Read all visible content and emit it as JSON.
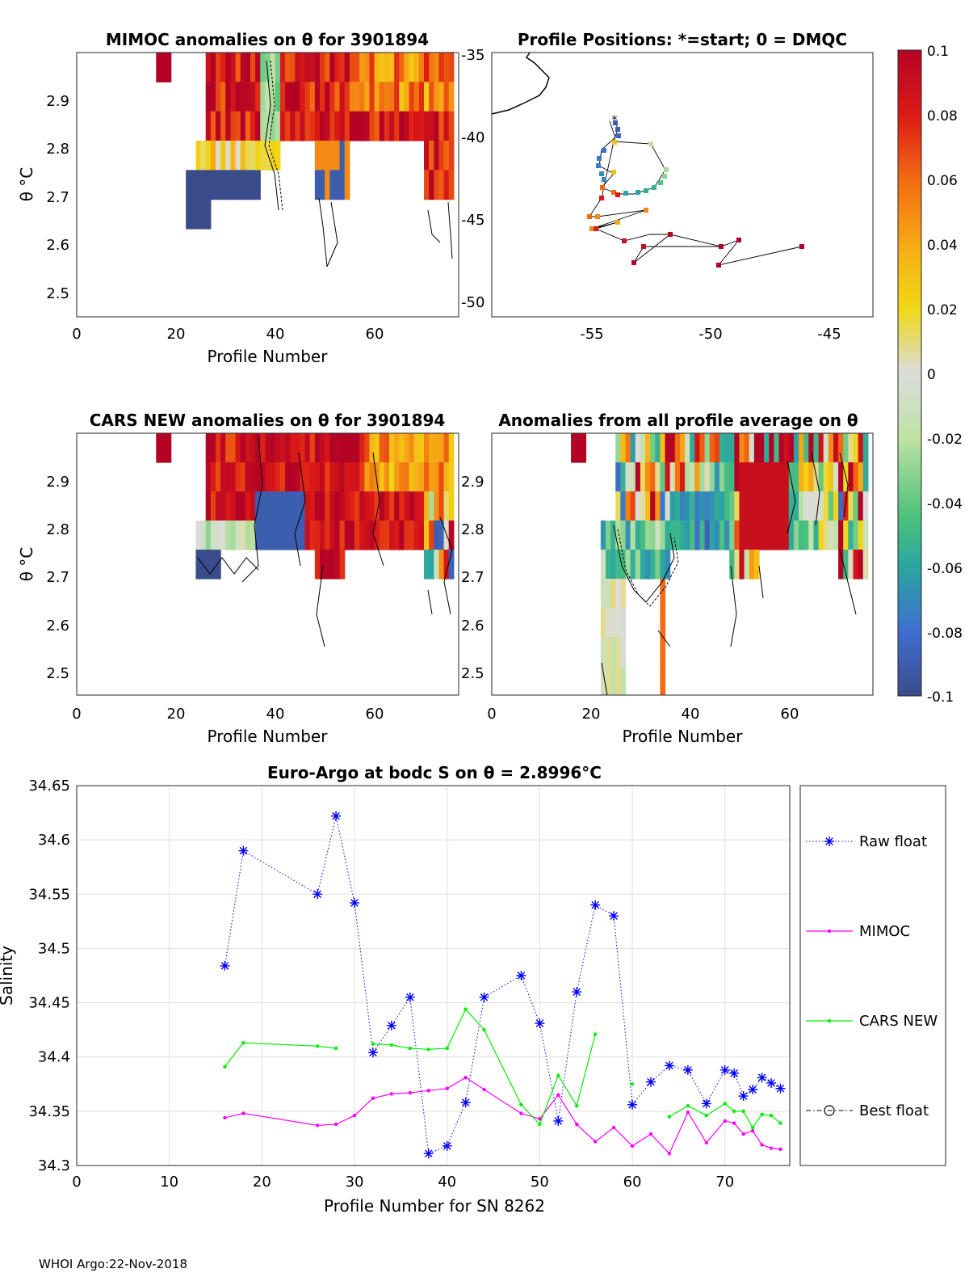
{
  "panel_mimoc": {
    "title": "MIMOC anomalies on θ  for 3901894",
    "xlabel": "Profile Number",
    "ylabel": "θ °C",
    "xticks": [
      "0",
      "20",
      "40",
      "60"
    ],
    "yticks": [
      "2.9",
      "2.8",
      "2.7",
      "2.6",
      "2.5"
    ]
  },
  "panel_positions": {
    "title": "Profile Positions: *=start; 0 = DMQC",
    "xticks": [
      "-55",
      "-50",
      "-45"
    ],
    "yticks": [
      "-35",
      "-40",
      "-45",
      "-50"
    ]
  },
  "colorbar": {
    "ticks": [
      "0.1",
      "0.08",
      "0.06",
      "0.04",
      "0.02",
      "0",
      "-0.02",
      "-0.04",
      "-0.06",
      "-0.08",
      "-0.1"
    ],
    "range": [
      -0.1,
      0.1
    ]
  },
  "panel_cars": {
    "title": "CARS NEW anomalies on θ for 3901894",
    "xlabel": "Profile Number",
    "ylabel": "θ °C",
    "xticks": [
      "0",
      "20",
      "40",
      "60"
    ],
    "yticks": [
      "2.9",
      "2.8",
      "2.7",
      "2.6",
      "2.5"
    ]
  },
  "panel_avg": {
    "title": "Anomalies from all profile average on θ",
    "xlabel": "Profile Number",
    "xticks": [
      "0",
      "20",
      "40",
      "60"
    ],
    "yticks": [
      "2.9",
      "2.8",
      "2.7",
      "2.6",
      "2.5"
    ]
  },
  "chart_data": {
    "type": "line",
    "title": "Euro-Argo at bodc S on θ = 2.8996°C",
    "xlabel": "Profile Number for SN 8262",
    "ylabel": "Salinity",
    "xlim": [
      0,
      77
    ],
    "ylim": [
      34.3,
      34.65
    ],
    "xticks": [
      "0",
      "10",
      "20",
      "30",
      "40",
      "50",
      "60",
      "70"
    ],
    "yticks": [
      "34.3",
      "34.35",
      "34.4",
      "34.45",
      "34.5",
      "34.55",
      "34.6",
      "34.65"
    ],
    "grid": true,
    "legend_position": "right",
    "series": [
      {
        "name": "Raw float",
        "color": "#0000ff",
        "style": "dotted-star",
        "points": [
          [
            16,
            34.484
          ],
          [
            18,
            34.59
          ],
          [
            26,
            34.55
          ],
          [
            28,
            34.622
          ],
          [
            30,
            34.542
          ],
          [
            32,
            34.404
          ],
          [
            34,
            34.429
          ],
          [
            36,
            34.455
          ],
          [
            38,
            34.311
          ],
          [
            40,
            34.318
          ],
          [
            42,
            34.358
          ],
          [
            44,
            34.455
          ],
          [
            48,
            34.475
          ],
          [
            50,
            34.431
          ],
          [
            52,
            34.341
          ],
          [
            54,
            34.46
          ],
          [
            56,
            34.54
          ],
          [
            58,
            34.53
          ],
          [
            60,
            34.356
          ],
          [
            62,
            34.377
          ],
          [
            64,
            34.392
          ],
          [
            66,
            34.388
          ],
          [
            68,
            34.357
          ],
          [
            70,
            34.388
          ],
          [
            71,
            34.385
          ],
          [
            72,
            34.364
          ],
          [
            73,
            34.37
          ],
          [
            74,
            34.381
          ],
          [
            75,
            34.376
          ],
          [
            76,
            34.371
          ]
        ]
      },
      {
        "name": "MIMOC",
        "color": "#ff00ff",
        "style": "solid-dot",
        "segments": [
          [
            [
              16,
              34.344
            ],
            [
              18,
              34.348
            ],
            [
              26,
              34.337
            ],
            [
              28,
              34.338
            ],
            [
              30,
              34.346
            ],
            [
              32,
              34.362
            ],
            [
              34,
              34.366
            ],
            [
              36,
              34.367
            ],
            [
              38,
              34.369
            ],
            [
              40,
              34.371
            ],
            [
              42,
              34.381
            ],
            [
              44,
              34.37
            ],
            [
              48,
              34.348
            ],
            [
              50,
              34.343
            ],
            [
              52,
              34.365
            ],
            [
              54,
              34.338
            ],
            [
              56,
              34.322
            ],
            [
              58,
              34.335
            ],
            [
              60,
              34.318
            ],
            [
              62,
              34.329
            ],
            [
              64,
              34.311
            ],
            [
              66,
              34.349
            ],
            [
              68,
              34.321
            ],
            [
              70,
              34.341
            ],
            [
              71,
              34.339
            ],
            [
              72,
              34.329
            ],
            [
              73,
              34.332
            ],
            [
              74,
              34.319
            ],
            [
              75,
              34.316
            ],
            [
              76,
              34.315
            ]
          ]
        ]
      },
      {
        "name": "CARS NEW",
        "color": "#00ee00",
        "style": "solid-dot",
        "segments": [
          [
            [
              16,
              34.391
            ],
            [
              18,
              34.413
            ],
            [
              26,
              34.41
            ],
            [
              28,
              34.408
            ]
          ],
          [
            [
              32,
              34.412
            ],
            [
              34,
              34.411
            ],
            [
              36,
              34.408
            ],
            [
              38,
              34.407
            ],
            [
              40,
              34.408
            ],
            [
              42,
              34.444
            ],
            [
              44,
              34.425
            ],
            [
              48,
              34.356
            ],
            [
              50,
              34.338
            ],
            [
              52,
              34.383
            ],
            [
              54,
              34.355
            ],
            [
              56,
              34.421
            ]
          ],
          [
            [
              60,
              34.375
            ]
          ],
          [
            [
              64,
              34.345
            ],
            [
              66,
              34.355
            ],
            [
              68,
              34.346
            ],
            [
              70,
              34.357
            ],
            [
              71,
              34.35
            ],
            [
              72,
              34.35
            ],
            [
              73,
              34.335
            ],
            [
              74,
              34.347
            ],
            [
              75,
              34.346
            ],
            [
              76,
              34.339
            ]
          ]
        ]
      },
      {
        "name": "Best float",
        "color": "#000000",
        "style": "dashdot-circle",
        "segments": []
      }
    ]
  },
  "footer": "WHOI Argo:22-Nov-2018"
}
